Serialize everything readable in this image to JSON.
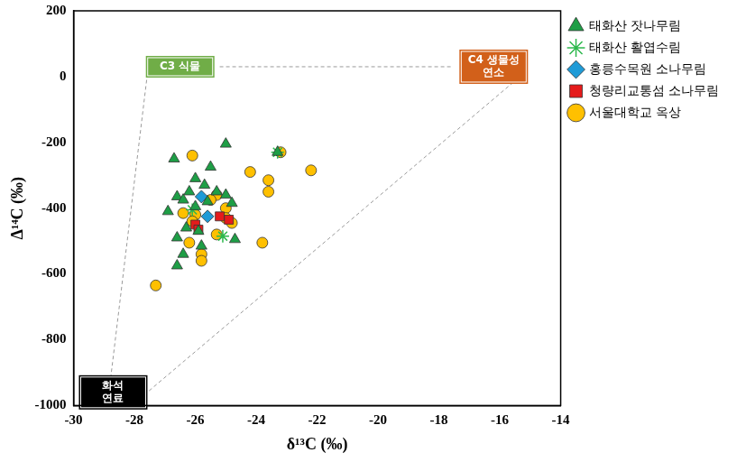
{
  "chart_data": {
    "type": "scatter",
    "x_label": "δ¹³C (‰)",
    "y_label": "Δ¹⁴C (‰)",
    "xlim": [
      -30,
      -14
    ],
    "xticks": [
      -30,
      -28,
      -26,
      -24,
      -22,
      -20,
      -18,
      -16,
      -14
    ],
    "ylim": [
      -1000,
      200
    ],
    "yticks": [
      -1000,
      -800,
      -600,
      -400,
      -200,
      0,
      200
    ],
    "grid": false,
    "legend": "right",
    "series": [
      {
        "name": "태화산 잣나무림",
        "color": "#1e9e46",
        "marker": "triangle",
        "values": [
          [
            -26.7,
            -250
          ],
          [
            -25.0,
            -205
          ],
          [
            -23.3,
            -230
          ],
          [
            -26.9,
            -410
          ],
          [
            -26.6,
            -365
          ],
          [
            -26.4,
            -375
          ],
          [
            -26.2,
            -350
          ],
          [
            -26.0,
            -310
          ],
          [
            -25.7,
            -330
          ],
          [
            -25.5,
            -275
          ],
          [
            -25.3,
            -350
          ],
          [
            -25.0,
            -360
          ],
          [
            -24.8,
            -385
          ],
          [
            -26.6,
            -490
          ],
          [
            -26.3,
            -460
          ],
          [
            -25.9,
            -470
          ],
          [
            -25.8,
            -515
          ],
          [
            -26.4,
            -540
          ],
          [
            -26.6,
            -575
          ],
          [
            -24.7,
            -495
          ],
          [
            -26.0,
            -395
          ],
          [
            -25.6,
            -380
          ]
        ]
      },
      {
        "name": "태화산 활엽수림",
        "color": "#2db84d",
        "marker": "star",
        "values": [
          [
            -23.3,
            -230
          ],
          [
            -26.1,
            -405
          ],
          [
            -25.1,
            -485
          ]
        ]
      },
      {
        "name": "홍릉수목원 소나무림",
        "color": "#1f9bd7",
        "marker": "rectRot",
        "values": [
          [
            -25.8,
            -365
          ],
          [
            -25.6,
            -425
          ]
        ]
      },
      {
        "name": "청량리교통섬 소나무림",
        "color": "#e51b1b",
        "marker": "rect",
        "values": [
          [
            -26.0,
            -450
          ],
          [
            -25.9,
            -465
          ],
          [
            -25.2,
            -425
          ],
          [
            -24.9,
            -435
          ]
        ]
      },
      {
        "name": "서울대학교 옥상",
        "color": "#ffc000",
        "marker": "circle",
        "values": [
          [
            -27.3,
            -635
          ],
          [
            -26.1,
            -240
          ],
          [
            -25.3,
            -360
          ],
          [
            -26.4,
            -415
          ],
          [
            -26.0,
            -420
          ],
          [
            -26.2,
            -505
          ],
          [
            -25.8,
            -540
          ],
          [
            -25.8,
            -560
          ],
          [
            -25.3,
            -480
          ],
          [
            -24.8,
            -445
          ],
          [
            -25.0,
            -400
          ],
          [
            -25.5,
            -375
          ],
          [
            -24.2,
            -290
          ],
          [
            -23.6,
            -315
          ],
          [
            -23.6,
            -350
          ],
          [
            -23.8,
            -505
          ],
          [
            -22.2,
            -285
          ],
          [
            -23.2,
            -230
          ],
          [
            -25.0,
            -430
          ],
          [
            -26.1,
            -440
          ]
        ]
      }
    ],
    "annotations": [
      {
        "text": "C3 식물",
        "x": -26.5,
        "y": 30,
        "color": "#70ad47"
      },
      {
        "text": "C4 생물성\n연소",
        "x": -16.2,
        "y": 30,
        "color": "#d2601a"
      },
      {
        "text": "화석\n연료",
        "x": -28.7,
        "y": -960,
        "color": "#000000"
      }
    ],
    "mixing_lines": [
      {
        "from": [
          -25.2,
          30
        ],
        "to": [
          -17.6,
          30
        ],
        "line_style": "dashed"
      },
      {
        "from": [
          -27.6,
          -10
        ],
        "to": [
          -28.8,
          -930
        ],
        "line_style": "dashed"
      },
      {
        "from": [
          -15.4,
          -5
        ],
        "to": [
          -27.9,
          -985
        ],
        "line_style": "dashed"
      }
    ]
  }
}
